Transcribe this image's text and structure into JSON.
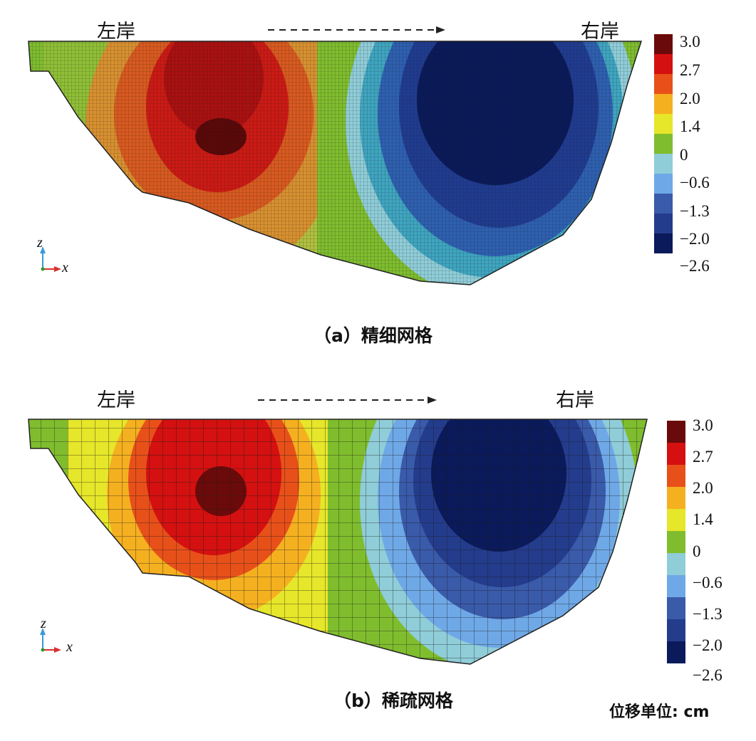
{
  "panels": [
    {
      "caption": "（a）精细网格",
      "left_bank": "左岸",
      "right_bank": "右岸",
      "mesh": "fine"
    },
    {
      "caption": "（b）稀疏网格",
      "left_bank": "左岸",
      "right_bank": "右岸",
      "mesh": "coarse"
    }
  ],
  "legend": {
    "labels": [
      "3.0",
      "2.7",
      "2.0",
      "1.4",
      "0",
      "−0.6",
      "−1.3",
      "−2.0",
      "−2.6"
    ],
    "colors": [
      "#6b0a0a",
      "#d41010",
      "#e8501a",
      "#f5b020",
      "#e6e62a",
      "#7fbd2e",
      "#8fcdd8",
      "#6fa8e6",
      "#3a5aaa",
      "#243c8c",
      "#0a1a5a"
    ]
  },
  "axes": {
    "z": "z",
    "x": "x"
  },
  "unit": "位移单位: cm"
}
